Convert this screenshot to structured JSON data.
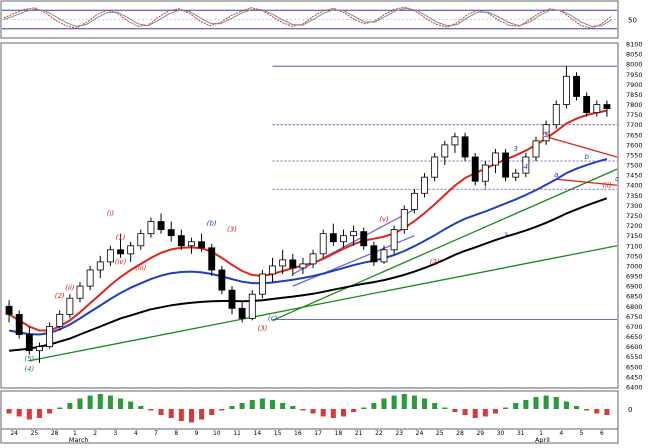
{
  "chart_data": [
    {
      "panel": "oscillator",
      "type": "line",
      "ylim": [
        0,
        100
      ],
      "y_ticks": [
        50
      ],
      "reference_lines": [
        20,
        80
      ],
      "grid": true,
      "series": [
        {
          "values": [
            55,
            70,
            82,
            88,
            72,
            48,
            30,
            22,
            40,
            65,
            80,
            70,
            45,
            28,
            32,
            58,
            78,
            85,
            70,
            45,
            30,
            40,
            62,
            76,
            88,
            80,
            60,
            40,
            28,
            35,
            60,
            78,
            86,
            72,
            50,
            36,
            45,
            68,
            84,
            90,
            75,
            52,
            34,
            25,
            40,
            66,
            80,
            70,
            48,
            32,
            28,
            50,
            72,
            85,
            78,
            55,
            30,
            22,
            36,
            62
          ],
          "color": "#c0392b"
        },
        {
          "values": [
            50,
            62,
            75,
            84,
            78,
            60,
            40,
            28,
            34,
            55,
            72,
            74,
            56,
            36,
            30,
            48,
            68,
            80,
            76,
            56,
            38,
            36,
            52,
            70,
            82,
            82,
            68,
            50,
            34,
            32,
            50,
            70,
            82,
            78,
            60,
            42,
            42,
            60,
            78,
            86,
            80,
            62,
            42,
            30,
            34,
            56,
            74,
            74,
            58,
            40,
            30,
            42,
            64,
            80,
            80,
            64,
            42,
            28,
            30,
            50
          ],
          "color": "#7f8c8d"
        }
      ]
    },
    {
      "panel": "price",
      "type": "line",
      "subtype": "candlestick",
      "ylim": [
        6400,
        8100
      ],
      "y_ticks": [
        6400,
        6450,
        6500,
        6550,
        6600,
        6650,
        6700,
        6750,
        6800,
        6850,
        6900,
        6950,
        7000,
        7050,
        7100,
        7150,
        7200,
        7250,
        7300,
        7350,
        7400,
        7450,
        7500,
        7550,
        7600,
        7650,
        7700,
        7750,
        7800,
        7850,
        7900,
        7950,
        8000,
        8050,
        8100
      ],
      "x_tick_labels": [
        "24",
        "25",
        "28",
        "1",
        "2",
        "3",
        "4",
        "7",
        "8",
        "9",
        "10",
        "11",
        "14",
        "15",
        "16",
        "17",
        "18",
        "21",
        "22",
        "23",
        "24",
        "25",
        "28",
        "29",
        "30",
        "31",
        "1",
        "4",
        "5",
        "6"
      ],
      "month_labels": [
        "March",
        "April"
      ],
      "candles": [
        [
          6800,
          6830,
          6720,
          6760
        ],
        [
          6760,
          6780,
          6640,
          6660
        ],
        [
          6660,
          6700,
          6560,
          6580
        ],
        [
          6580,
          6620,
          6520,
          6600
        ],
        [
          6600,
          6720,
          6590,
          6700
        ],
        [
          6700,
          6780,
          6680,
          6760
        ],
        [
          6760,
          6860,
          6740,
          6840
        ],
        [
          6840,
          6920,
          6820,
          6900
        ],
        [
          6900,
          7000,
          6880,
          6980
        ],
        [
          6980,
          7050,
          6940,
          7020
        ],
        [
          7020,
          7100,
          7000,
          7080
        ],
        [
          7080,
          7160,
          7040,
          7060
        ],
        [
          7060,
          7120,
          7020,
          7100
        ],
        [
          7100,
          7180,
          7080,
          7160
        ],
        [
          7160,
          7240,
          7140,
          7220
        ],
        [
          7220,
          7260,
          7160,
          7180
        ],
        [
          7180,
          7220,
          7120,
          7150
        ],
        [
          7150,
          7180,
          7080,
          7100
        ],
        [
          7100,
          7140,
          7060,
          7120
        ],
        [
          7120,
          7160,
          7070,
          7090
        ],
        [
          7090,
          7110,
          6950,
          6980
        ],
        [
          6980,
          7000,
          6860,
          6880
        ],
        [
          6880,
          6900,
          6760,
          6790
        ],
        [
          6790,
          6820,
          6720,
          6740
        ],
        [
          6740,
          6880,
          6730,
          6860
        ],
        [
          6860,
          6980,
          6840,
          6960
        ],
        [
          6960,
          7040,
          6920,
          7000
        ],
        [
          7000,
          7080,
          6960,
          7030
        ],
        [
          7030,
          7060,
          6950,
          6990
        ],
        [
          6990,
          7040,
          6960,
          7010
        ],
        [
          7010,
          7080,
          6990,
          7060
        ],
        [
          7060,
          7180,
          7040,
          7160
        ],
        [
          7160,
          7210,
          7100,
          7120
        ],
        [
          7120,
          7180,
          7090,
          7150
        ],
        [
          7150,
          7200,
          7100,
          7170
        ],
        [
          7170,
          7190,
          7080,
          7100
        ],
        [
          7100,
          7120,
          7000,
          7020
        ],
        [
          7020,
          7100,
          7010,
          7080
        ],
        [
          7080,
          7200,
          7060,
          7180
        ],
        [
          7180,
          7300,
          7160,
          7280
        ],
        [
          7280,
          7380,
          7260,
          7360
        ],
        [
          7360,
          7460,
          7340,
          7440
        ],
        [
          7440,
          7560,
          7420,
          7540
        ],
        [
          7540,
          7620,
          7500,
          7600
        ],
        [
          7600,
          7660,
          7560,
          7640
        ],
        [
          7640,
          7660,
          7520,
          7540
        ],
        [
          7540,
          7560,
          7400,
          7420
        ],
        [
          7420,
          7520,
          7400,
          7500
        ],
        [
          7500,
          7580,
          7460,
          7560
        ],
        [
          7560,
          7580,
          7420,
          7440
        ],
        [
          7440,
          7480,
          7420,
          7460
        ],
        [
          7460,
          7560,
          7440,
          7540
        ],
        [
          7540,
          7640,
          7520,
          7620
        ],
        [
          7620,
          7720,
          7600,
          7700
        ],
        [
          7700,
          7820,
          7680,
          7800
        ],
        [
          7800,
          7990,
          7780,
          7940
        ],
        [
          7940,
          7960,
          7820,
          7840
        ],
        [
          7840,
          7860,
          7740,
          7760
        ],
        [
          7760,
          7820,
          7740,
          7800
        ],
        [
          7800,
          7820,
          7740,
          7780
        ]
      ],
      "series": [
        {
          "values": [
            6580,
            6585,
            6590,
            6600,
            6610,
            6625,
            6640,
            6660,
            6680,
            6700,
            6720,
            6740,
            6755,
            6770,
            6785,
            6795,
            6805,
            6812,
            6818,
            6822,
            6825,
            6826,
            6826,
            6825,
            6826,
            6830,
            6836,
            6842,
            6848,
            6855,
            6862,
            6872,
            6882,
            6892,
            6902,
            6912,
            6920,
            6930,
            6942,
            6956,
            6972,
            6990,
            7010,
            7032,
            7055,
            7075,
            7092,
            7110,
            7128,
            7145,
            7160,
            7176,
            7194,
            7214,
            7236,
            7260,
            7280,
            7300,
            7318,
            7335
          ],
          "color": "#000000"
        },
        {
          "values": [
            6680,
            6670,
            6662,
            6660,
            6668,
            6685,
            6710,
            6740,
            6772,
            6804,
            6836,
            6866,
            6892,
            6914,
            6935,
            6952,
            6964,
            6970,
            6972,
            6968,
            6960,
            6948,
            6935,
            6922,
            6915,
            6914,
            6918,
            6925,
            6932,
            6940,
            6950,
            6962,
            6976,
            6990,
            7004,
            7016,
            7026,
            7038,
            7054,
            7074,
            7098,
            7124,
            7152,
            7182,
            7210,
            7234,
            7252,
            7270,
            7290,
            7310,
            7330,
            7352,
            7376,
            7402,
            7430,
            7460,
            7482,
            7500,
            7516,
            7530
          ],
          "color": "#1f3fbf"
        },
        {
          "values": [
            6760,
            6730,
            6700,
            6680,
            6680,
            6700,
            6730,
            6770,
            6815,
            6860,
            6905,
            6945,
            6980,
            7010,
            7040,
            7065,
            7082,
            7090,
            7092,
            7088,
            7070,
            7040,
            7005,
            6975,
            6955,
            6950,
            6960,
            6975,
            6990,
            7002,
            7015,
            7035,
            7060,
            7085,
            7108,
            7125,
            7135,
            7145,
            7162,
            7188,
            7222,
            7262,
            7306,
            7352,
            7398,
            7436,
            7460,
            7482,
            7506,
            7528,
            7548,
            7572,
            7600,
            7632,
            7668,
            7706,
            7730,
            7748,
            7760,
            7770
          ],
          "color": "#e0261c"
        }
      ],
      "annotations": [
        {
          "text": "(4)",
          "x": 2,
          "y": 6480,
          "color": "#1a7a8a"
        },
        {
          "text": "(5)",
          "x": 2,
          "y": 6530,
          "color": "#1a7a8a"
        },
        {
          "text": "(3)",
          "x": 25,
          "y": 6680,
          "color": "#cc2222"
        },
        {
          "text": "(c)",
          "x": 26,
          "y": 6730,
          "color": "#1a3fbf"
        },
        {
          "text": "(3)",
          "x": 22,
          "y": 7170,
          "color": "#cc2222"
        },
        {
          "text": "(b)",
          "x": 20,
          "y": 7200,
          "color": "#1a3fbf"
        },
        {
          "text": "(1)",
          "x": 11,
          "y": 7130,
          "color": "#cc2222"
        },
        {
          "text": "(2)",
          "x": 5,
          "y": 6840,
          "color": "#cc2222"
        },
        {
          "text": "(i)",
          "x": 10,
          "y": 7250,
          "color": "#cc2222"
        },
        {
          "text": "(ii)",
          "x": 6,
          "y": 6880,
          "color": "#cc2222"
        },
        {
          "text": "(iii)",
          "x": 13,
          "y": 6980,
          "color": "#cc2222"
        },
        {
          "text": "(iv)",
          "x": 11,
          "y": 7010,
          "color": "#cc2222"
        },
        {
          "text": "(v)",
          "x": 37,
          "y": 7220,
          "color": "#cc2222"
        },
        {
          "text": "(2)",
          "x": 42,
          "y": 7010,
          "color": "#cc2222"
        },
        {
          "text": "(i)",
          "x": 53,
          "y": 7640,
          "color": "#cc2222"
        },
        {
          "text": "(ii)",
          "x": 59,
          "y": 7390,
          "color": "#cc2222"
        },
        {
          "text": "(3)",
          "x": 65,
          "y": 7990,
          "color": "#cc2222"
        },
        {
          "text": "(4)",
          "x": 69,
          "y": 7690,
          "color": "#cc2222"
        },
        {
          "text": "(5)",
          "x": 69,
          "y": 8060,
          "color": "#1a7a8a"
        },
        {
          "text": "5",
          "x": 53,
          "y": 7640,
          "color": "#1a3fbf"
        },
        {
          "text": "3",
          "x": 50,
          "y": 7570,
          "color": "#1a3fbf"
        },
        {
          "text": "4",
          "x": 51,
          "y": 7480,
          "color": "#1a3fbf"
        },
        {
          "text": "1",
          "x": 47,
          "y": 7380,
          "color": "#1a3fbf"
        },
        {
          "text": "2",
          "x": 49,
          "y": 7140,
          "color": "#1a3fbf"
        },
        {
          "text": "a",
          "x": 54,
          "y": 7440,
          "color": "#1a3fbf"
        },
        {
          "text": "b",
          "x": 57,
          "y": 7530,
          "color": "#1a3fbf"
        },
        {
          "text": "c",
          "x": 60,
          "y": 7420,
          "color": "#1a3fbf"
        }
      ],
      "trendlines": [
        {
          "from": [
            2,
            6530
          ],
          "to": [
            73,
            7100
          ],
          "color": "#1a8a1a"
        },
        {
          "from": [
            26,
            6730
          ],
          "to": [
            73,
            7480
          ],
          "color": "#1a8a1a"
        },
        {
          "from": [
            28,
            6960
          ],
          "to": [
            40,
            7280
          ],
          "color": "#6a6ad0"
        },
        {
          "from": [
            28,
            6900
          ],
          "to": [
            40,
            7150
          ],
          "color": "#6a6ad0"
        },
        {
          "from": [
            53,
            7640
          ],
          "to": [
            62,
            7540
          ],
          "color": "#e0261c"
        },
        {
          "from": [
            54,
            7430
          ],
          "to": [
            62,
            7400
          ],
          "color": "#e0261c"
        }
      ],
      "hlines": [
        {
          "y": 7990,
          "from": 26
        },
        {
          "y": 7700,
          "from": 26
        },
        {
          "y": 7520,
          "from": 26
        },
        {
          "y": 7380,
          "from": 26
        },
        {
          "y": 6735,
          "from": 26
        }
      ]
    },
    {
      "panel": "histogram",
      "type": "bar",
      "y_ticks": [
        0
      ],
      "values": [
        -3,
        -5,
        -7,
        -6,
        -3,
        1,
        4,
        7,
        9,
        10,
        9,
        7,
        5,
        2,
        -1,
        -4,
        -6,
        -8,
        -9,
        -7,
        -4,
        -1,
        2,
        4,
        6,
        7,
        6,
        4,
        2,
        -1,
        -3,
        -5,
        -6,
        -5,
        -2,
        1,
        4,
        7,
        9,
        10,
        9,
        7,
        4,
        1,
        -2,
        -4,
        -6,
        -5,
        -3,
        1,
        4,
        6,
        8,
        9,
        8,
        5,
        2,
        -1,
        -3,
        -4
      ]
    }
  ]
}
